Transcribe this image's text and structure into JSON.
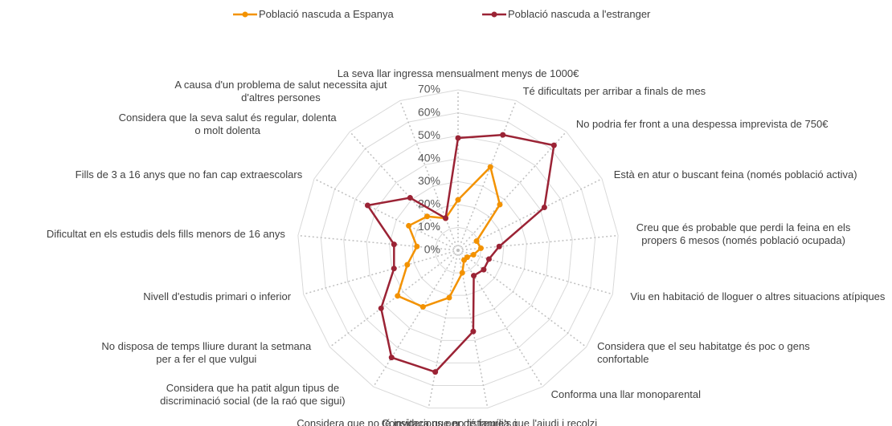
{
  "chart_data": {
    "type": "radar",
    "categories": [
      "La seva llar ingressa mensualment menys de 1000€",
      "Té dificultats per arribar a finals de mes",
      "No podria fer front a una despessa imprevista de 750€",
      "Està en atur o buscant feina (només població activa)",
      "Creu que és probable que perdi la feina en els propers 6 mesos (només població ocupada)",
      "Viu en habitació de lloguer o altres situacions atípiques",
      "Considera que el seu habitatge és poc o gens confortable",
      "Conforma una llar monoparental",
      "Considera que no té família que l'ajudi i recolzi",
      "Considera que no té invitacions per distreure's i sortir amb altres persones",
      "Considera que ha patit algun tipus de discriminació social (de la raó que sigui)",
      "No disposa de temps lliure durant la setmana per a fer el que vulgui",
      "Nivell d'estudis primari o inferior",
      "Dificultat en els estudis dels fills menors de 16 anys",
      "Fills de 3 a 16 anys que no fan cap extraescolars",
      "Considera que la seva salut és regular, dolenta o molt dolenta",
      "A causa d'un problema de salut necessita ajut d'altres persones"
    ],
    "series": [
      {
        "name": "Població nascuda a Espanya",
        "color": "#f39200",
        "values": [
          22,
          39,
          27,
          9,
          10,
          7,
          5,
          5,
          10,
          21,
          29,
          33,
          23,
          18,
          24,
          20,
          15
        ]
      },
      {
        "name": "Població nascuda a l'estranger",
        "color": "#9b2335",
        "values": [
          49,
          54,
          62,
          42,
          18,
          14,
          14,
          13,
          36,
          54,
          55,
          42,
          29,
          28,
          44,
          31,
          15
        ]
      }
    ],
    "ylim": [
      0,
      70
    ],
    "yticks": [
      {
        "value": 0,
        "label": "0%"
      },
      {
        "value": 10,
        "label": "10%"
      },
      {
        "value": 20,
        "label": "20%"
      },
      {
        "value": 30,
        "label": "30%"
      },
      {
        "value": 40,
        "label": "40%"
      },
      {
        "value": 50,
        "label": "50%"
      },
      {
        "value": 60,
        "label": "60%"
      },
      {
        "value": 70,
        "label": "70%"
      }
    ],
    "grid": true,
    "legend": "top"
  }
}
